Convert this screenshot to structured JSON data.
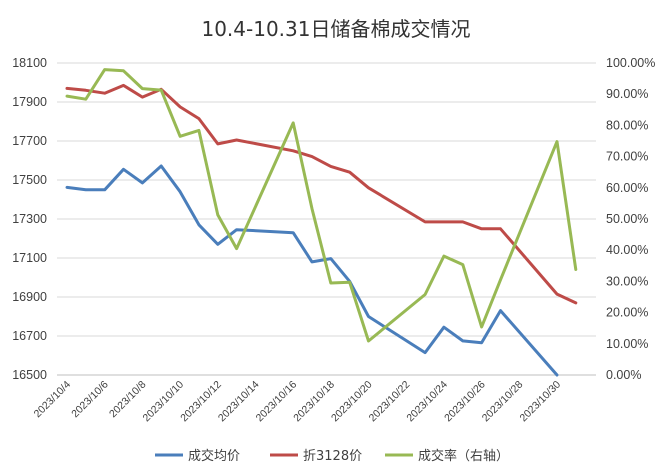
{
  "chart_data": {
    "type": "line",
    "title": "10.4-10.31日储备棉成交情况",
    "x": [
      "2023/10/4",
      "2023/10/5",
      "2023/10/6",
      "2023/10/7",
      "2023/10/8",
      "2023/10/9",
      "2023/10/10",
      "2023/10/11",
      "2023/10/12",
      "2023/10/13",
      "2023/10/14",
      "2023/10/15",
      "2023/10/16",
      "2023/10/17",
      "2023/10/18",
      "2023/10/19",
      "2023/10/20",
      "2023/10/21",
      "2023/10/22",
      "2023/10/23",
      "2023/10/24",
      "2023/10/25",
      "2023/10/26",
      "2023/10/27",
      "2023/10/28",
      "2023/10/29",
      "2023/10/30",
      "2023/10/31"
    ],
    "x_tick_labels": [
      "2023/10/4",
      "2023/10/6",
      "2023/10/8",
      "2023/10/10",
      "2023/10/12",
      "2023/10/14",
      "2023/10/16",
      "2023/10/18",
      "2023/10/20",
      "2023/10/22",
      "2023/10/24",
      "2023/10/26",
      "2023/10/28",
      "2023/10/30"
    ],
    "y_left": {
      "min": 16500,
      "max": 18100,
      "ticks": [
        "16500",
        "16700",
        "16900",
        "17100",
        "17300",
        "17500",
        "17700",
        "17900",
        "18100"
      ]
    },
    "y_right": {
      "min": 0,
      "max": 1.0,
      "ticks": [
        "0.00%",
        "10.00%",
        "20.00%",
        "30.00%",
        "40.00%",
        "50.00%",
        "60.00%",
        "70.00%",
        "80.00%",
        "90.00%",
        "100.00%"
      ]
    },
    "grid": true,
    "legend_position": "bottom",
    "series": [
      {
        "name": "成交均价",
        "axis": "left",
        "color": "#4a7ebb",
        "values": [
          17462,
          17450,
          17450,
          17555,
          17485,
          17572,
          17440,
          17270,
          17170,
          17245,
          null,
          null,
          17230,
          17080,
          17097,
          16980,
          16800,
          null,
          null,
          16615,
          16745,
          16675,
          16665,
          16830,
          null,
          null,
          16500,
          null
        ]
      },
      {
        "name": "折3128价",
        "axis": "left",
        "color": "#be4b48",
        "values": [
          17970,
          17960,
          17945,
          17985,
          17925,
          17965,
          17875,
          17815,
          17685,
          17705,
          null,
          null,
          17650,
          17620,
          17570,
          17540,
          17460,
          null,
          null,
          17285,
          17285,
          17285,
          17250,
          17250,
          null,
          null,
          16915,
          16870
        ]
      },
      {
        "name": "成交率（右轴）",
        "axis": "right",
        "color": "#98b954",
        "values": [
          0.894,
          0.884,
          0.979,
          0.975,
          0.918,
          0.913,
          0.765,
          0.784,
          0.513,
          0.405,
          null,
          null,
          0.808,
          0.533,
          0.295,
          0.297,
          0.109,
          null,
          null,
          0.258,
          0.381,
          0.354,
          0.154,
          0.305,
          null,
          null,
          0.748,
          0.338
        ]
      }
    ]
  }
}
